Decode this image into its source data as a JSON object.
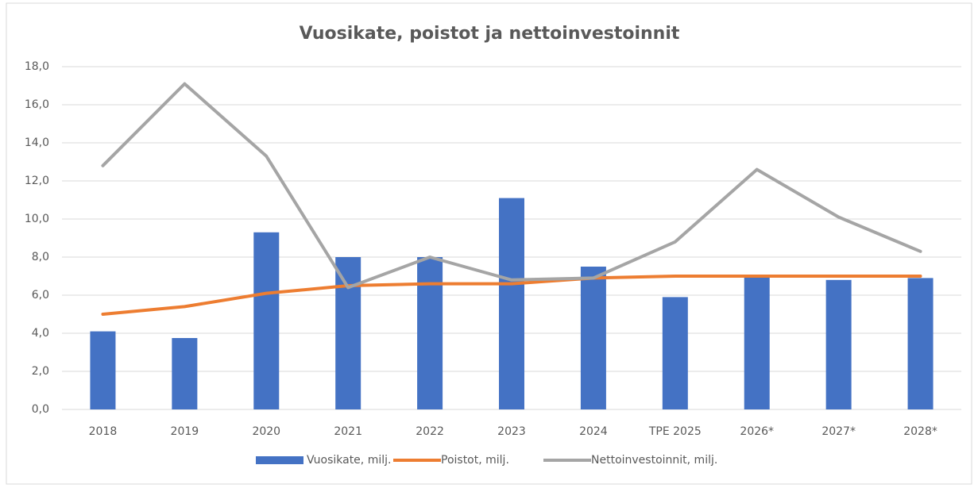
{
  "chart_data": {
    "type": "bar_line",
    "title": "Vuosikate, poistot ja nettoinvestoinnit",
    "categories": [
      "2018",
      "2019",
      "2020",
      "2021",
      "2022",
      "2023",
      "2024",
      "TPE 2025",
      "2026*",
      "2027*",
      "2028*"
    ],
    "series": [
      {
        "name": "Vuosikate, milj.",
        "type": "bar",
        "color": "#4472c4",
        "values": [
          4.1,
          3.75,
          9.3,
          8.0,
          8.0,
          11.1,
          7.5,
          5.9,
          7.0,
          6.8,
          6.9
        ]
      },
      {
        "name": "Poistot, milj.",
        "type": "line",
        "color": "#ed7d31",
        "values": [
          5.0,
          5.4,
          6.1,
          6.5,
          6.6,
          6.6,
          6.9,
          7.0,
          7.0,
          7.0,
          7.0
        ]
      },
      {
        "name": "Nettoinvestoinnit, milj.",
        "type": "line",
        "color": "#a5a5a5",
        "values": [
          12.8,
          17.1,
          13.3,
          6.4,
          8.0,
          6.8,
          6.9,
          8.8,
          12.6,
          10.1,
          8.3
        ]
      }
    ],
    "ylim": [
      0,
      18
    ],
    "yticks": [
      {
        "value": 0,
        "label": "0,0"
      },
      {
        "value": 2,
        "label": "2,0"
      },
      {
        "value": 4,
        "label": "4,0"
      },
      {
        "value": 6,
        "label": "6,0"
      },
      {
        "value": 8,
        "label": "8,0"
      },
      {
        "value": 10,
        "label": "10,0"
      },
      {
        "value": 12,
        "label": "12,0"
      },
      {
        "value": 14,
        "label": "14,0"
      },
      {
        "value": 16,
        "label": "16,0"
      },
      {
        "value": 18,
        "label": "18,0"
      }
    ],
    "grid": true,
    "legend": "bottom"
  }
}
